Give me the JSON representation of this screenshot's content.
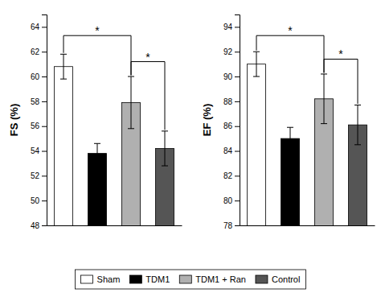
{
  "chart_data": [
    {
      "type": "bar",
      "ylabel": "FS (%)",
      "categories": [
        "Sham",
        "TDM1",
        "TDM1 + Ran",
        "Control"
      ],
      "values": [
        60.8,
        53.8,
        57.9,
        54.2
      ],
      "errors": [
        1.0,
        0.8,
        2.1,
        1.4
      ],
      "colors": [
        "white",
        "black",
        "#b0b0b0",
        "#555555"
      ],
      "ylim": [
        48,
        65
      ],
      "yticks": [
        48,
        50,
        52,
        54,
        56,
        58,
        60,
        62,
        64
      ],
      "tick_labels": "y",
      "legend": "bottom",
      "annotations": [
        {
          "text": "*",
          "categories": [
            "Sham",
            "TDM1 + Ran"
          ],
          "y": 63.3,
          "ends": [
            61.9,
            60.1
          ]
        },
        {
          "text": "*",
          "categories": [
            "TDM1 + Ran",
            "Control"
          ],
          "y": 61.2,
          "ends": [
            60.1,
            55.7
          ]
        }
      ]
    },
    {
      "type": "bar",
      "ylabel": "EF (%)",
      "categories": [
        "Sham",
        "TDM1",
        "TDM1 + Ran",
        "Control"
      ],
      "values": [
        91.0,
        85.0,
        88.2,
        86.1
      ],
      "errors": [
        1.0,
        0.9,
        2.0,
        1.6
      ],
      "colors": [
        "white",
        "black",
        "#b0b0b0",
        "#555555"
      ],
      "ylim": [
        78,
        95
      ],
      "yticks": [
        78,
        80,
        82,
        84,
        86,
        88,
        90,
        92,
        94
      ],
      "tick_labels": "y",
      "annotations": [
        {
          "text": "*",
          "categories": [
            "Sham",
            "TDM1 + Ran"
          ],
          "y": 93.3,
          "ends": [
            92.1,
            90.3
          ]
        },
        {
          "text": "*",
          "categories": [
            "TDM1 + Ran",
            "Control"
          ],
          "y": 91.4,
          "ends": [
            90.3,
            87.8
          ]
        }
      ]
    }
  ]
}
